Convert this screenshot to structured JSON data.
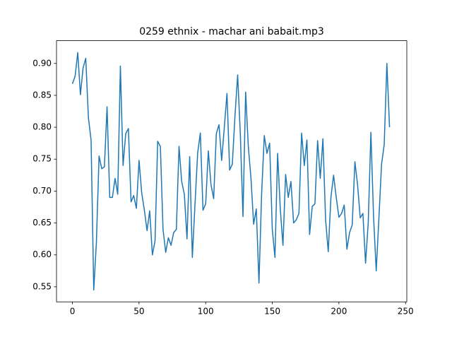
{
  "chart_data": {
    "type": "line",
    "title": "0259 ethnix - machar ani babait.mp3",
    "x": [
      0,
      2,
      4,
      6,
      8,
      10,
      12,
      14,
      16,
      18,
      20,
      22,
      24,
      26,
      28,
      30,
      32,
      34,
      36,
      38,
      40,
      42,
      44,
      46,
      48,
      50,
      52,
      54,
      56,
      58,
      60,
      62,
      64,
      66,
      68,
      70,
      72,
      74,
      76,
      78,
      80,
      82,
      84,
      86,
      88,
      90,
      92,
      94,
      96,
      98,
      100,
      102,
      104,
      106,
      108,
      110,
      112,
      114,
      116,
      118,
      120,
      122,
      124,
      126,
      128,
      130,
      132,
      134,
      136,
      138,
      140,
      142,
      144,
      146,
      148,
      150,
      152,
      154,
      156,
      158,
      160,
      162,
      164,
      166,
      168,
      170,
      172,
      174,
      176,
      178,
      180,
      182,
      184,
      186,
      188,
      190,
      192,
      194,
      196,
      198,
      200,
      202,
      204,
      206,
      208,
      210,
      212,
      214,
      216,
      218,
      220,
      222,
      224,
      226,
      228,
      230,
      232,
      234,
      236,
      238
    ],
    "series": [
      {
        "name": "",
        "color": "#1f77b4",
        "values": [
          0.868,
          0.88,
          0.917,
          0.851,
          0.893,
          0.908,
          0.815,
          0.78,
          0.545,
          0.62,
          0.755,
          0.735,
          0.738,
          0.832,
          0.69,
          0.69,
          0.72,
          0.695,
          0.896,
          0.74,
          0.79,
          0.798,
          0.683,
          0.693,
          0.673,
          0.748,
          0.697,
          0.67,
          0.638,
          0.669,
          0.6,
          0.622,
          0.778,
          0.77,
          0.64,
          0.604,
          0.627,
          0.615,
          0.635,
          0.64,
          0.77,
          0.715,
          0.695,
          0.625,
          0.754,
          0.596,
          0.68,
          0.76,
          0.791,
          0.67,
          0.68,
          0.763,
          0.71,
          0.688,
          0.79,
          0.804,
          0.748,
          0.8,
          0.853,
          0.733,
          0.742,
          0.818,
          0.882,
          0.79,
          0.66,
          0.855,
          0.77,
          0.72,
          0.648,
          0.672,
          0.556,
          0.696,
          0.787,
          0.759,
          0.775,
          0.64,
          0.596,
          0.759,
          0.672,
          0.615,
          0.726,
          0.69,
          0.715,
          0.65,
          0.655,
          0.665,
          0.791,
          0.74,
          0.78,
          0.632,
          0.676,
          0.68,
          0.779,
          0.72,
          0.782,
          0.655,
          0.605,
          0.69,
          0.725,
          0.69,
          0.659,
          0.665,
          0.678,
          0.609,
          0.635,
          0.647,
          0.746,
          0.71,
          0.658,
          0.665,
          0.587,
          0.65,
          0.792,
          0.66,
          0.575,
          0.657,
          0.742,
          0.773,
          0.9,
          0.8
        ]
      }
    ],
    "xlim": [
      -11.95,
      250.95
    ],
    "ylim": [
      0.5264,
      0.9356
    ],
    "xticks": [
      0,
      50,
      100,
      150,
      200,
      250
    ],
    "yticks": [
      0.55,
      {
        "value": 0.6,
        "label": "0.60"
      },
      0.65,
      {
        "value": 0.7,
        "label": "0.70"
      },
      0.75,
      {
        "value": 0.8,
        "label": "0.80"
      },
      0.85,
      {
        "value": 0.9,
        "label": "0.90"
      }
    ]
  }
}
